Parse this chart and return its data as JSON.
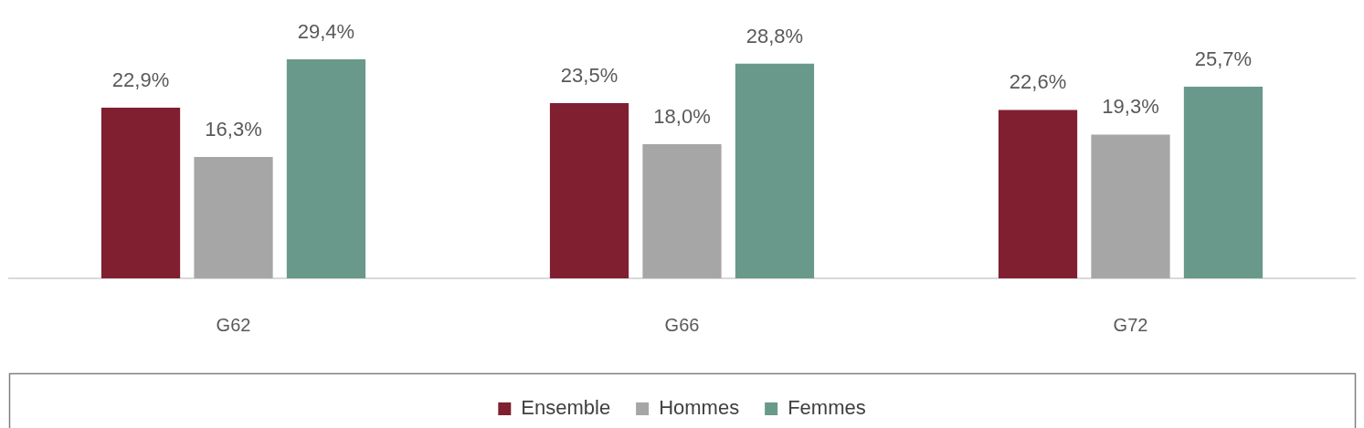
{
  "chart_data": {
    "type": "bar",
    "categories": [
      "G62",
      "G66",
      "G72"
    ],
    "series": [
      {
        "name": "Ensemble",
        "color": "#7f1f30",
        "values": [
          22.9,
          23.5,
          22.6
        ],
        "value_labels": [
          "22,9%",
          "23,5%",
          "22,6%"
        ]
      },
      {
        "name": "Hommes",
        "color": "#a6a6a6",
        "values": [
          16.3,
          18.0,
          19.3
        ],
        "value_labels": [
          "16,3%",
          "18,0%",
          "19,3%"
        ]
      },
      {
        "name": "Femmes",
        "color": "#69998a",
        "values": [
          29.4,
          28.8,
          25.7
        ],
        "value_labels": [
          "29,4%",
          "28,8%",
          "25,7%"
        ]
      }
    ],
    "legend": "bottom",
    "grid": false,
    "tick_labels": "x"
  }
}
